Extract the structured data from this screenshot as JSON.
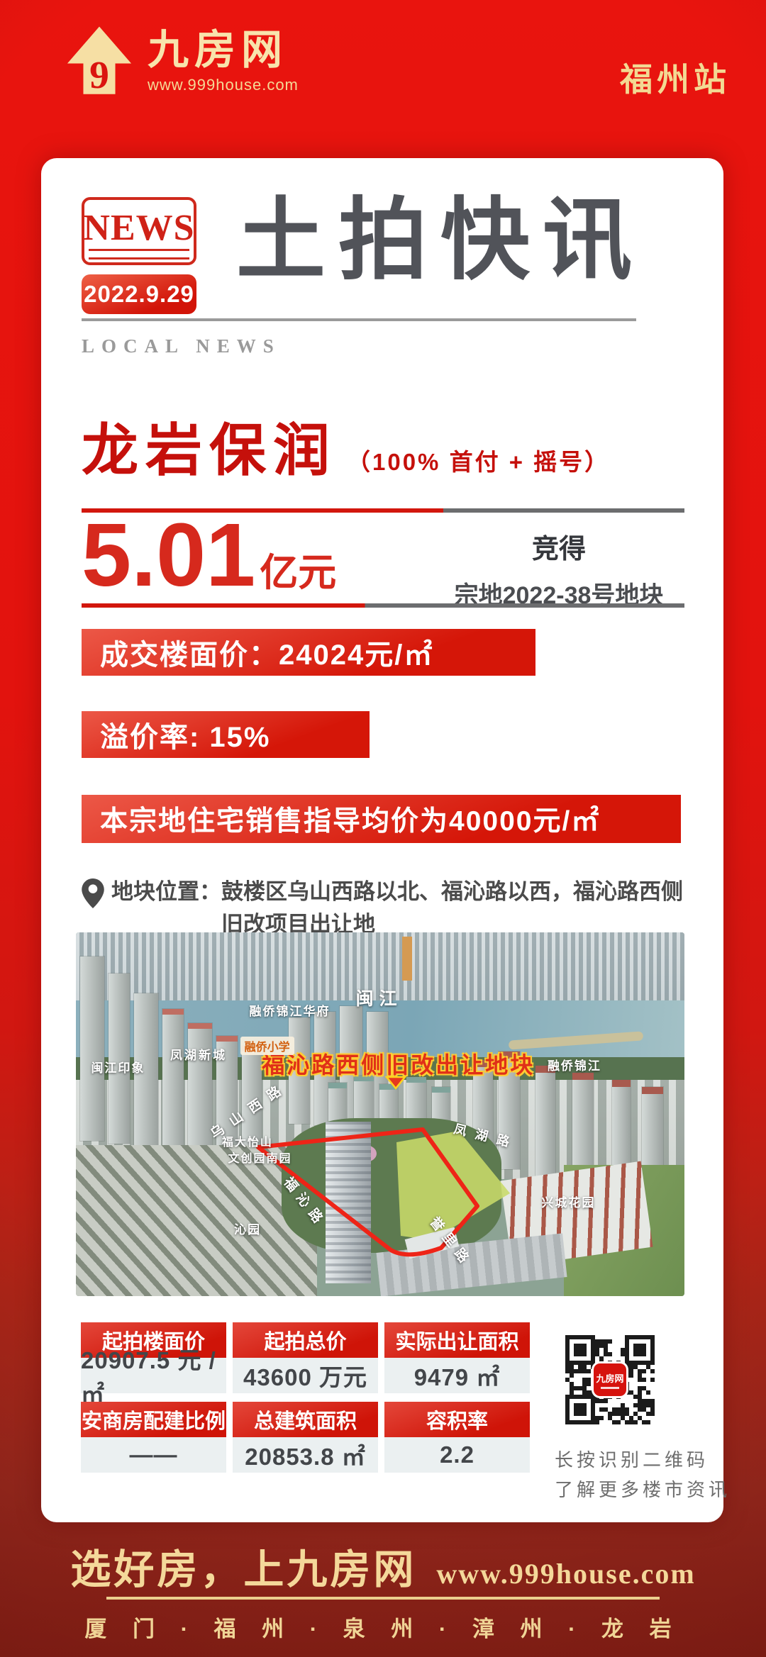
{
  "header": {
    "brand": "九房网",
    "brand_url": "www.999house.com",
    "station": "福州站"
  },
  "news": {
    "badge": "NEWS",
    "date": "2022.9.29",
    "title": "土拍快讯",
    "subtitle": "LOCAL NEWS"
  },
  "deal": {
    "winner": "龙岩保润",
    "winner_note": "（100% 首付 + 摇号）",
    "price_value": "5.01",
    "price_unit": "亿元",
    "result_label": "竞得",
    "parcel": "宗地2022-38号地块"
  },
  "bars": {
    "floor_price": "成交楼面价：24024元/㎡",
    "premium_rate": "溢价率: 15%",
    "guide_price": "本宗地住宅销售指导均价为40000元/㎡"
  },
  "location": {
    "line1": "地块位置：鼓楼区乌山西路以北、福沁路以西，福沁路西侧",
    "line2": "旧改项目出让地"
  },
  "map": {
    "headline": "福沁路西侧旧改出让地块",
    "labels": {
      "river": "闽江",
      "estate1": "融侨锦江华府",
      "school": "融侨小学",
      "estate2": "凤湖新城",
      "estate3": "闽江印象",
      "estate4": "融侨锦江",
      "road1": "乌山西路",
      "park1": "福大怡山",
      "park2": "文创园南园",
      "road2": "凤湖路",
      "road3": "福沁路",
      "estate5": "沁园",
      "road4": "誉里路",
      "estate6": "兴城花园"
    }
  },
  "info_table": {
    "cells": [
      {
        "label": "起拍楼面价",
        "value": "20907.5 元 / ㎡"
      },
      {
        "label": "起拍总价",
        "value": "43600 万元"
      },
      {
        "label": "实际出让面积",
        "value": "9479 ㎡"
      },
      {
        "label": "安商房配建比例",
        "value": "——"
      },
      {
        "label": "总建筑面积",
        "value": "20853.8 ㎡"
      },
      {
        "label": "容积率",
        "value": "2.2"
      }
    ]
  },
  "qr": {
    "center_label": "九房网",
    "caption_line1": "长按识别二维码",
    "caption_line2": "了解更多楼市资讯"
  },
  "footer": {
    "slogan": "选好房，上九房网",
    "url": "www.999house.com",
    "cities": "厦 门 · 福 州 · 泉 州 · 漳 州 · 龙 岩"
  },
  "colors": {
    "background_red": "#e2130e",
    "footer_red": "#9a2b1f",
    "gold": "#f4d89a",
    "card_white": "#ffffff",
    "accent_red": "#d6190f",
    "bar_red_gradient": [
      "#ec5847",
      "#d51608"
    ],
    "title_gray": "#515359",
    "table_value_bg": "#ebf0f1",
    "map_headline_red": "#e03018",
    "map_headline_outline": "#ffcc33"
  }
}
